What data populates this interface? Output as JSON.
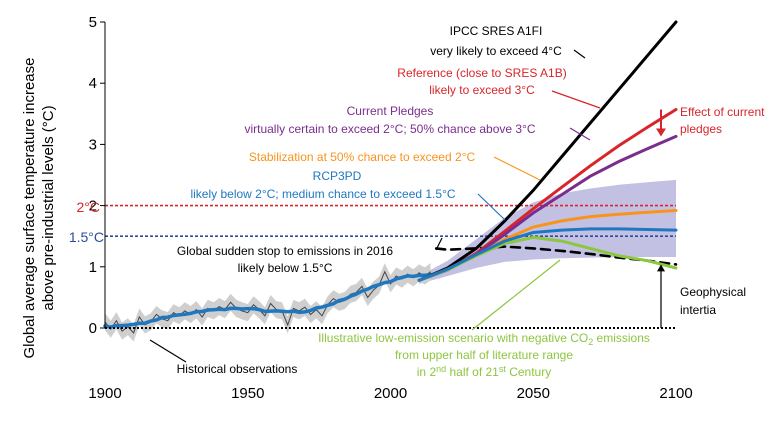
{
  "chart_data": {
    "type": "line",
    "ylabel_line1": "Global average surface temperature increase",
    "ylabel_line2": "above pre-industrial levels (°C)",
    "xlim": [
      1900,
      2100
    ],
    "ylim": [
      0,
      5
    ],
    "x_ticks": [
      "1900",
      "1950",
      "2000",
      "2050",
      "2100"
    ],
    "y_ticks": [
      "0",
      "1",
      "2",
      "3",
      "4",
      "5"
    ],
    "grid": false,
    "thresholds": [
      {
        "label": "2°C",
        "value": 2.0,
        "color": "#d7262b"
      },
      {
        "label": "1.5°C",
        "value": 1.5,
        "color": "#2b4c9b"
      }
    ],
    "observations": {
      "label": "Historical observations",
      "x": [
        1900,
        1902,
        1904,
        1906,
        1908,
        1910,
        1912,
        1914,
        1916,
        1918,
        1920,
        1922,
        1924,
        1926,
        1928,
        1930,
        1932,
        1934,
        1936,
        1938,
        1940,
        1942,
        1944,
        1946,
        1948,
        1950,
        1952,
        1954,
        1956,
        1958,
        1960,
        1962,
        1964,
        1966,
        1968,
        1970,
        1972,
        1974,
        1976,
        1978,
        1980,
        1982,
        1984,
        1986,
        1988,
        1990,
        1992,
        1994,
        1996,
        1998,
        2000,
        2002,
        2004,
        2006,
        2008,
        2010,
        2012,
        2014
      ],
      "y": [
        0.1,
        -0.02,
        0.12,
        -0.05,
        0.02,
        -0.08,
        0.18,
        0.05,
        0.1,
        0.22,
        0.15,
        0.12,
        0.25,
        0.2,
        0.28,
        0.22,
        0.3,
        0.18,
        0.32,
        0.28,
        0.35,
        0.3,
        0.42,
        0.32,
        0.28,
        0.25,
        0.38,
        0.3,
        0.2,
        0.4,
        0.3,
        0.28,
        0.05,
        0.32,
        0.28,
        0.34,
        0.22,
        0.3,
        0.2,
        0.38,
        0.48,
        0.42,
        0.45,
        0.55,
        0.58,
        0.68,
        0.5,
        0.62,
        0.7,
        0.92,
        0.72,
        0.85,
        0.8,
        0.88,
        0.82,
        0.9,
        0.85,
        0.92
      ]
    },
    "series": [
      {
        "name": "IPCC SRES A1FI",
        "color": "#000000",
        "x": [
          2010,
          2020,
          2030,
          2040,
          2050,
          2060,
          2070,
          2080,
          2090,
          2100
        ],
        "y": [
          0.78,
          0.98,
          1.3,
          1.75,
          2.25,
          2.8,
          3.35,
          3.9,
          4.45,
          5.0
        ]
      },
      {
        "name": "Reference (close to SRES A1B)",
        "color": "#d7262b",
        "x": [
          2010,
          2020,
          2030,
          2040,
          2050,
          2060,
          2070,
          2080,
          2090,
          2100
        ],
        "y": [
          0.78,
          0.95,
          1.22,
          1.58,
          1.95,
          2.3,
          2.65,
          2.98,
          3.28,
          3.57
        ]
      },
      {
        "name": "Current Pledges",
        "color": "#7b2d8e",
        "x": [
          2010,
          2020,
          2030,
          2040,
          2050,
          2060,
          2070,
          2080,
          2090,
          2100
        ],
        "y": [
          0.78,
          0.95,
          1.2,
          1.53,
          1.88,
          2.18,
          2.48,
          2.72,
          2.93,
          3.13
        ]
      },
      {
        "name": "Stabilization at 50% chance to exceed 2°C",
        "color": "#f7941d",
        "x": [
          2010,
          2020,
          2030,
          2040,
          2050,
          2060,
          2070,
          2080,
          2090,
          2100
        ],
        "y": [
          0.78,
          0.96,
          1.18,
          1.45,
          1.65,
          1.75,
          1.82,
          1.86,
          1.89,
          1.92
        ]
      },
      {
        "name": "RCP3PD",
        "color": "#1f77c0",
        "x": [
          2010,
          2020,
          2030,
          2040,
          2050,
          2060,
          2070,
          2080,
          2090,
          2100
        ],
        "y": [
          0.78,
          0.96,
          1.2,
          1.42,
          1.56,
          1.6,
          1.62,
          1.62,
          1.61,
          1.6
        ]
      },
      {
        "name": "Illustrative low-emission scenario",
        "color": "#8dc63f",
        "x": [
          2010,
          2020,
          2030,
          2040,
          2050,
          2060,
          2070,
          2080,
          2090,
          2100
        ],
        "y": [
          0.78,
          0.95,
          1.18,
          1.38,
          1.48,
          1.42,
          1.3,
          1.18,
          1.1,
          0.98
        ]
      },
      {
        "name": "Global sudden stop to emissions in 2016",
        "color": "#000000",
        "dashed": true,
        "x": [
          2016,
          2020,
          2030,
          2040,
          2050,
          2060,
          2070,
          2080,
          2090,
          2100
        ],
        "y": [
          1.3,
          1.28,
          1.3,
          1.33,
          1.3,
          1.26,
          1.21,
          1.15,
          1.1,
          1.04
        ]
      }
    ],
    "envelope_rcp3pd": {
      "x": [
        2010,
        2020,
        2030,
        2040,
        2050,
        2060,
        2070,
        2080,
        2090,
        2100
      ],
      "upper": [
        0.85,
        1.1,
        1.45,
        1.8,
        2.05,
        2.2,
        2.28,
        2.34,
        2.38,
        2.42
      ],
      "lower": [
        0.72,
        0.85,
        0.98,
        1.08,
        1.12,
        1.14,
        1.15,
        1.16,
        1.16,
        1.16
      ]
    },
    "annotations": {
      "a1fi_line1": "IPCC SRES A1FI",
      "a1fi_line2": "very likely to exceed 4°C",
      "ref_line1": "Reference (close to SRES A1B)",
      "ref_line2": "likely to exceed 3°C",
      "pledges_line1": "Current Pledges",
      "pledges_line2": "virtually certain to exceed 2°C; 50% chance above 3°C",
      "stab_line1": "Stabilization at 50% chance to exceed 2°C",
      "rcp_line1": "RCP3PD",
      "rcp_line2": "likely below 2°C; medium chance to exceed 1.5°C",
      "stop_line1": "Global sudden stop to emissions in 2016",
      "stop_line2": "likely below 1.5°C",
      "effect_line1": "Effect of current",
      "effect_line2": "pledges",
      "geo_line1": "Geophysical",
      "geo_line2": "intertia",
      "low_line1": "Illustrative low-emission scenario with negative CO",
      "low_line1_sub": "2",
      "low_line1_end": " emissions",
      "low_line2": "from upper half of literature range",
      "low_line3_a": "in 2",
      "low_line3_sup1": "nd",
      "low_line3_b": " half of 21",
      "low_line3_sup2": "st",
      "low_line3_c": " Century",
      "obs_label": "Historical observations"
    }
  }
}
